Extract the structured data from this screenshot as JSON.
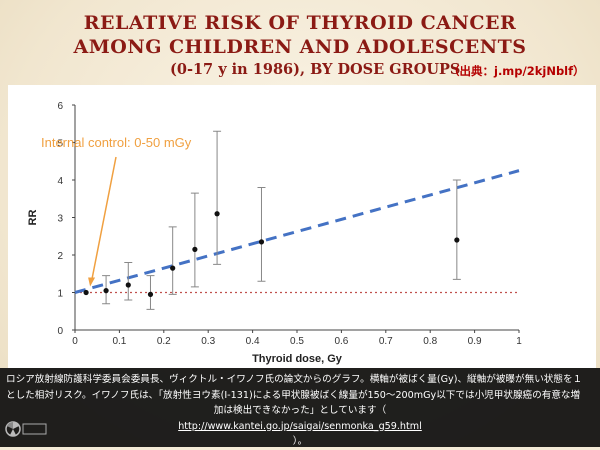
{
  "header": {
    "title_line1": "RELATIVE RISK OF THYROID CANCER",
    "title_line2": "AMONG CHILDREN AND ADOLESCENTS",
    "title_line3": "(0-17 y in 1986), BY DOSE GROUPS",
    "source": "（出典：j.mp/2kjNblf）"
  },
  "chart_data": {
    "type": "scatter",
    "title": "",
    "xlabel": "Thyroid dose, Gy",
    "ylabel": "RR",
    "xlim": [
      0,
      1
    ],
    "ylim": [
      0,
      6
    ],
    "x_ticks": [
      "0",
      "0.1",
      "0.2",
      "0.3",
      "0.4",
      "0.5",
      "0.6",
      "0.7",
      "0.8",
      "0.9",
      "1"
    ],
    "y_ticks": [
      "0",
      "1",
      "2",
      "3",
      "4",
      "5",
      "6"
    ],
    "grid": false,
    "annotation": "Internal control: 0-50 mGy",
    "points": [
      {
        "x": 0.025,
        "y": 1.0,
        "lo": 1.0,
        "hi": 1.0
      },
      {
        "x": 0.07,
        "y": 1.05,
        "lo": 0.7,
        "hi": 1.45
      },
      {
        "x": 0.12,
        "y": 1.2,
        "lo": 0.8,
        "hi": 1.8
      },
      {
        "x": 0.17,
        "y": 0.95,
        "lo": 0.55,
        "hi": 1.45
      },
      {
        "x": 0.22,
        "y": 1.65,
        "lo": 0.95,
        "hi": 2.75
      },
      {
        "x": 0.27,
        "y": 2.15,
        "lo": 1.15,
        "hi": 3.65
      },
      {
        "x": 0.32,
        "y": 3.1,
        "lo": 1.75,
        "hi": 5.3
      },
      {
        "x": 0.42,
        "y": 2.35,
        "lo": 1.3,
        "hi": 3.8
      },
      {
        "x": 0.86,
        "y": 2.4,
        "lo": 1.35,
        "hi": 4.0
      }
    ],
    "fit_line": {
      "x": [
        0,
        1
      ],
      "y": [
        1.0,
        4.25
      ],
      "style": "dashed",
      "color": "#4472c4"
    },
    "reference_line": {
      "y": 1,
      "style": "dotted",
      "color": "#c0504d"
    },
    "annotation_arrow_color": "#f0a040"
  },
  "caption": {
    "line1": "ロシア放射線防護科学委員会委員長、ヴィクトル・イワノフ氏の論文からのグラフ。横軸が被ばく量(Gy)、縦軸が被曝が無い状態を１",
    "line2": "とした相対リスク。イワノフ氏は、「放射性ヨウ素(I-131)による甲状腺被ばく線量が150〜200mGy以下では小児甲状腺癌の有意な増",
    "line3": "加は検出できなかった」としています（",
    "link": "http://www.kantei.go.jp/saigai/senmonka_g59.html",
    "line5": "）。"
  }
}
